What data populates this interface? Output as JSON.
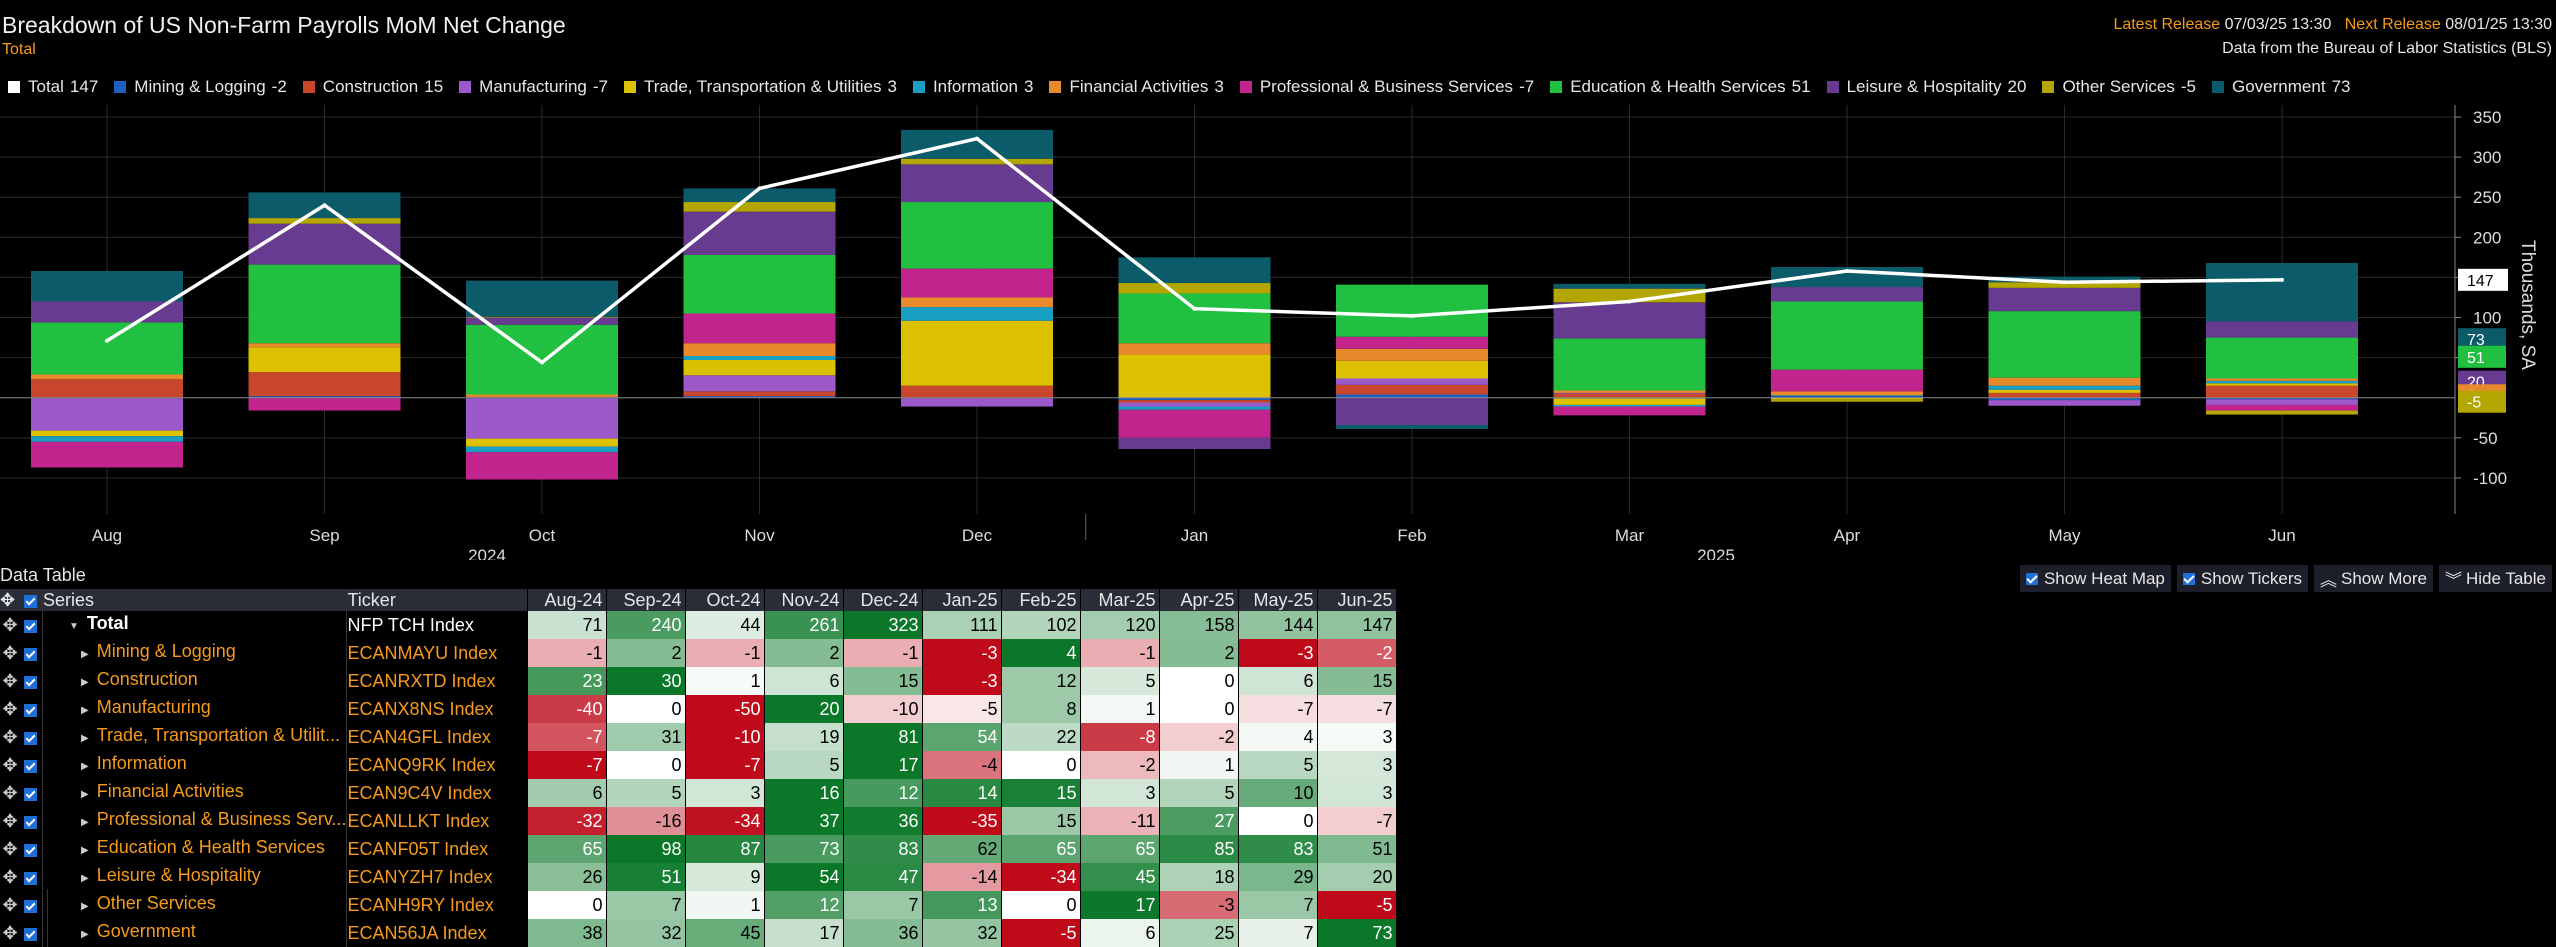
{
  "header": {
    "title": "Breakdown of US Non-Farm Payrolls MoM Net Change",
    "subtitle": "Total",
    "latest_label": "Latest Release",
    "latest_value": "07/03/25 13:30",
    "next_label": "Next Release",
    "next_value": "08/01/25 13:30",
    "source": "Data from the Bureau of Labor Statistics (BLS)"
  },
  "chart_data": {
    "type": "bar",
    "stacked": true,
    "categories": [
      "Aug",
      "Sep",
      "Oct",
      "Nov",
      "Dec",
      "Jan",
      "Feb",
      "Mar",
      "Apr",
      "May",
      "Jun"
    ],
    "year_labels": [
      "2024",
      "2025"
    ],
    "ylabel": "Thousands, SA",
    "ylim": [
      -145,
      365
    ],
    "yticks": [
      350,
      300,
      250,
      200,
      150,
      100,
      50,
      -50,
      -100
    ],
    "ytick_labels": [
      "350",
      "300",
      "250",
      "200",
      "150",
      "100",
      "50",
      "-50",
      "-100"
    ],
    "line_series": {
      "name": "Total",
      "values": [
        71,
        240,
        44,
        261,
        323,
        111,
        102,
        120,
        158,
        144,
        147
      ],
      "color": "#ffffff"
    },
    "series": [
      {
        "name": "Mining & Logging",
        "values": [
          -1,
          2,
          -1,
          2,
          -1,
          -3,
          4,
          -1,
          2,
          -3,
          -2
        ],
        "color": "#1f5fc0"
      },
      {
        "name": "Construction",
        "values": [
          23,
          30,
          1,
          6,
          15,
          -3,
          12,
          5,
          0,
          6,
          15
        ],
        "color": "#c8472c"
      },
      {
        "name": "Manufacturing",
        "values": [
          -40,
          0,
          -50,
          20,
          -10,
          -5,
          8,
          1,
          0,
          -7,
          -7
        ],
        "color": "#9b59c9"
      },
      {
        "name": "Trade, Transportation & Utilities",
        "values": [
          -7,
          31,
          -10,
          19,
          81,
          54,
          22,
          -8,
          -2,
          4,
          3
        ],
        "color": "#dcc100"
      },
      {
        "name": "Information",
        "values": [
          -7,
          0,
          -7,
          5,
          17,
          -4,
          0,
          -2,
          1,
          5,
          3
        ],
        "color": "#1a9fc4"
      },
      {
        "name": "Financial Activities",
        "values": [
          6,
          5,
          3,
          16,
          12,
          14,
          15,
          3,
          5,
          10,
          3
        ],
        "color": "#e8892c"
      },
      {
        "name": "Professional & Business Services",
        "values": [
          -32,
          -16,
          -34,
          37,
          36,
          -35,
          15,
          -11,
          27,
          0,
          -7
        ],
        "color": "#c2248e"
      },
      {
        "name": "Education & Health Services",
        "values": [
          65,
          98,
          87,
          73,
          83,
          62,
          65,
          65,
          85,
          83,
          51
        ],
        "color": "#21c040"
      },
      {
        "name": "Leisure & Hospitality",
        "values": [
          26,
          51,
          9,
          54,
          47,
          -14,
          -34,
          45,
          18,
          29,
          20
        ],
        "color": "#673b8f"
      },
      {
        "name": "Other Services",
        "values": [
          0,
          7,
          1,
          12,
          7,
          13,
          0,
          17,
          -3,
          7,
          -5
        ],
        "color": "#b3a600"
      },
      {
        "name": "Government",
        "values": [
          38,
          32,
          45,
          17,
          36,
          32,
          -5,
          6,
          25,
          7,
          73
        ],
        "color": "#0b5b6b"
      }
    ],
    "right_labels": [
      {
        "text": "73",
        "value": 73,
        "color": "#0b5b6b"
      },
      {
        "text": "147",
        "value": 147,
        "color": "#ffffff"
      },
      {
        "text": "20",
        "value": 20,
        "color": "#673b8f"
      },
      {
        "text": "51",
        "value": 51,
        "color": "#21c040"
      },
      {
        "text": "3",
        "value": 3,
        "color": "#e8892c"
      },
      {
        "text": "-5",
        "value": -5,
        "color": "#b3a600"
      }
    ]
  },
  "legend": [
    {
      "name": "Total",
      "value": "147",
      "color": "#ffffff"
    },
    {
      "name": "Mining & Logging",
      "value": "-2",
      "color": "#1f5fc0"
    },
    {
      "name": "Construction",
      "value": "15",
      "color": "#c8472c"
    },
    {
      "name": "Manufacturing",
      "value": "-7",
      "color": "#9b59c9"
    },
    {
      "name": "Trade, Transportation & Utilities",
      "value": "3",
      "color": "#dcc100"
    },
    {
      "name": "Information",
      "value": "3",
      "color": "#1a9fc4"
    },
    {
      "name": "Financial Activities",
      "value": "3",
      "color": "#e8892c"
    },
    {
      "name": "Professional & Business Services",
      "value": "-7",
      "color": "#c2248e"
    },
    {
      "name": "Education & Health Services",
      "value": "51",
      "color": "#21c040"
    },
    {
      "name": "Leisure & Hospitality",
      "value": "20",
      "color": "#673b8f"
    },
    {
      "name": "Other Services",
      "value": "-5",
      "color": "#b3a600"
    },
    {
      "name": "Government",
      "value": "73",
      "color": "#0b5b6b"
    }
  ],
  "data_table": {
    "title": "Data Table",
    "controls": {
      "heat_map": "Show Heat Map",
      "tickers": "Show Tickers",
      "more": "Show More",
      "hide": "Hide Table"
    },
    "col_series": "Series",
    "col_ticker": "Ticker",
    "months": [
      "Aug-24",
      "Sep-24",
      "Oct-24",
      "Nov-24",
      "Dec-24",
      "Jan-25",
      "Feb-25",
      "Mar-25",
      "Apr-25",
      "May-25",
      "Jun-25"
    ],
    "rows": [
      {
        "series": "Total",
        "ticker": "NFP TCH Index",
        "values": [
          71,
          240,
          44,
          261,
          323,
          111,
          102,
          120,
          158,
          144,
          147
        ]
      },
      {
        "series": "Mining & Logging",
        "ticker": "ECANMAYU Index",
        "values": [
          -1,
          2,
          -1,
          2,
          -1,
          -3,
          4,
          -1,
          2,
          -3,
          -2
        ]
      },
      {
        "series": "Construction",
        "ticker": "ECANRXTD Index",
        "values": [
          23,
          30,
          1,
          6,
          15,
          -3,
          12,
          5,
          0,
          6,
          15
        ]
      },
      {
        "series": "Manufacturing",
        "ticker": "ECANX8NS Index",
        "values": [
          -40,
          0,
          -50,
          20,
          -10,
          -5,
          8,
          1,
          0,
          -7,
          -7
        ]
      },
      {
        "series": "Trade, Transportation & Utilit...",
        "ticker": "ECAN4GFL Index",
        "values": [
          -7,
          31,
          -10,
          19,
          81,
          54,
          22,
          -8,
          -2,
          4,
          3
        ]
      },
      {
        "series": "Information",
        "ticker": "ECANQ9RK Index",
        "values": [
          -7,
          0,
          -7,
          5,
          17,
          -4,
          0,
          -2,
          1,
          5,
          3
        ]
      },
      {
        "series": "Financial Activities",
        "ticker": "ECAN9C4V Index",
        "values": [
          6,
          5,
          3,
          16,
          12,
          14,
          15,
          3,
          5,
          10,
          3
        ]
      },
      {
        "series": "Professional & Business Serv...",
        "ticker": "ECANLLKT Index",
        "values": [
          -32,
          -16,
          -34,
          37,
          36,
          -35,
          15,
          -11,
          27,
          0,
          -7
        ]
      },
      {
        "series": "Education & Health Services",
        "ticker": "ECANF05T Index",
        "values": [
          65,
          98,
          87,
          73,
          83,
          62,
          65,
          65,
          85,
          83,
          51
        ]
      },
      {
        "series": "Leisure & Hospitality",
        "ticker": "ECANYZH7 Index",
        "values": [
          26,
          51,
          9,
          54,
          47,
          -14,
          -34,
          45,
          18,
          29,
          20
        ]
      },
      {
        "series": "Other Services",
        "ticker": "ECANH9RY Index",
        "values": [
          0,
          7,
          1,
          12,
          7,
          13,
          0,
          17,
          -3,
          7,
          -5
        ]
      },
      {
        "series": "Government",
        "ticker": "ECAN56JA Index",
        "values": [
          38,
          32,
          45,
          17,
          36,
          32,
          -5,
          6,
          25,
          7,
          73
        ]
      }
    ]
  }
}
